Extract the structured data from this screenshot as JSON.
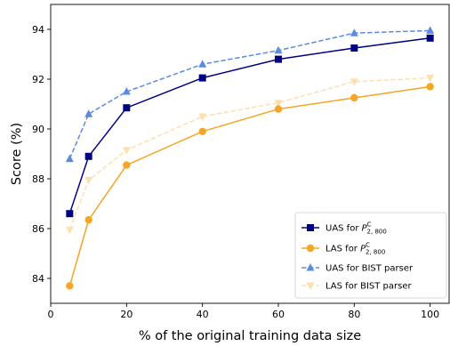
{
  "chart_data": {
    "type": "line",
    "xlabel": "% of the original training data size",
    "ylabel": "Score (%)",
    "xlim": [
      0,
      105
    ],
    "ylim": [
      83.0,
      95.0
    ],
    "xticks": [
      0,
      20,
      40,
      60,
      80,
      100
    ],
    "yticks": [
      84,
      86,
      88,
      90,
      92,
      94
    ],
    "grid": false,
    "legend_position": "bottom-right",
    "x": [
      5,
      10,
      20,
      40,
      60,
      80,
      100
    ],
    "series": [
      {
        "name": "UAS for P_{2,800}^C",
        "legend_main": "UAS for ",
        "legend_sub": "2, 800",
        "legend_sup": "C",
        "color": "#000080",
        "marker": "square",
        "dash": "solid",
        "values": [
          86.6,
          88.9,
          90.85,
          92.05,
          92.8,
          93.25,
          93.65
        ]
      },
      {
        "name": "LAS for P_{2,800}^C",
        "legend_main": "LAS for ",
        "legend_sub": "2, 800",
        "legend_sup": "C",
        "color": "#f5a623",
        "marker": "circle",
        "dash": "solid",
        "values": [
          83.7,
          86.35,
          88.55,
          89.9,
          90.8,
          91.25,
          91.7
        ]
      },
      {
        "name": "UAS for BIST parser",
        "legend_main": "UAS for BIST parser",
        "color": "#5b8be0",
        "marker": "triangle-up",
        "dash": "dashed",
        "values": [
          88.8,
          90.6,
          91.5,
          92.6,
          93.15,
          93.85,
          93.95
        ]
      },
      {
        "name": "LAS for BIST parser",
        "legend_main": "LAS for BIST parser",
        "color": "#fde0b0",
        "marker": "triangle-down",
        "dash": "dashed",
        "values": [
          85.95,
          87.95,
          89.15,
          90.5,
          91.05,
          91.9,
          92.05
        ]
      }
    ]
  }
}
